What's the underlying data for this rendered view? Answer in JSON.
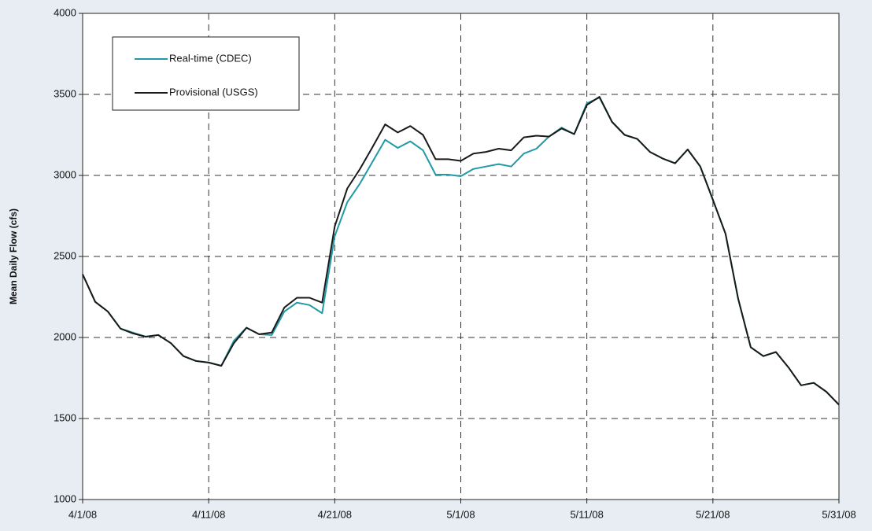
{
  "chart_data": {
    "type": "line",
    "ylabel": "Mean Daily Flow (cfs)",
    "x": [
      "4/1/08",
      "4/2/08",
      "4/3/08",
      "4/4/08",
      "4/5/08",
      "4/6/08",
      "4/7/08",
      "4/8/08",
      "4/9/08",
      "4/10/08",
      "4/11/08",
      "4/12/08",
      "4/13/08",
      "4/14/08",
      "4/15/08",
      "4/16/08",
      "4/17/08",
      "4/18/08",
      "4/19/08",
      "4/20/08",
      "4/21/08",
      "4/22/08",
      "4/23/08",
      "4/24/08",
      "4/25/08",
      "4/26/08",
      "4/27/08",
      "4/28/08",
      "4/29/08",
      "4/30/08",
      "5/1/08",
      "5/2/08",
      "5/3/08",
      "5/4/08",
      "5/5/08",
      "5/6/08",
      "5/7/08",
      "5/8/08",
      "5/9/08",
      "5/10/08",
      "5/11/08",
      "5/12/08",
      "5/13/08",
      "5/14/08",
      "5/15/08",
      "5/16/08",
      "5/17/08",
      "5/18/08",
      "5/19/08",
      "5/20/08",
      "5/21/08",
      "5/22/08",
      "5/23/08",
      "5/24/08",
      "5/25/08",
      "5/26/08",
      "5/27/08",
      "5/28/08",
      "5/29/08",
      "5/30/08",
      "5/31/08"
    ],
    "series": [
      {
        "name": "Real-time (CDEC)",
        "color": "#1f9aa6",
        "values": [
          2390,
          2220,
          2160,
          2055,
          2030,
          2005,
          2015,
          1965,
          1885,
          1855,
          1845,
          1825,
          1980,
          2060,
          2020,
          2015,
          2160,
          2215,
          2200,
          2150,
          2625,
          2835,
          2950,
          3085,
          3220,
          3170,
          3210,
          3155,
          3005,
          3005,
          2995,
          3040,
          3055,
          3070,
          3055,
          3135,
          3165,
          3240,
          3295,
          3255,
          3445,
          3480,
          3330,
          3250,
          3225,
          3145,
          3105,
          3075,
          3160,
          3055,
          2850,
          2640,
          2240,
          1940,
          1885,
          1910,
          1815,
          1705,
          1720,
          1665,
          1585
        ]
      },
      {
        "name": "Provisional (USGS)",
        "color": "#1a1a1a",
        "values": [
          2390,
          2220,
          2160,
          2055,
          2025,
          2005,
          2015,
          1965,
          1885,
          1855,
          1845,
          1825,
          1965,
          2060,
          2020,
          2030,
          2185,
          2245,
          2245,
          2215,
          2685,
          2920,
          3040,
          3175,
          3315,
          3265,
          3305,
          3250,
          3100,
          3100,
          3090,
          3135,
          3145,
          3165,
          3155,
          3235,
          3245,
          3240,
          3290,
          3255,
          3435,
          3485,
          3330,
          3250,
          3225,
          3145,
          3105,
          3075,
          3160,
          3055,
          2850,
          2640,
          2240,
          1940,
          1885,
          1910,
          1815,
          1705,
          1720,
          1665,
          1585
        ]
      }
    ],
    "ylim": [
      1000,
      4000
    ],
    "yticks": [
      1000,
      1500,
      2000,
      2500,
      3000,
      3500,
      4000
    ],
    "xticks": [
      "4/1/08",
      "4/11/08",
      "4/21/08",
      "5/1/08",
      "5/11/08",
      "5/21/08",
      "5/31/08"
    ],
    "grid": true,
    "legend": "upper left"
  }
}
